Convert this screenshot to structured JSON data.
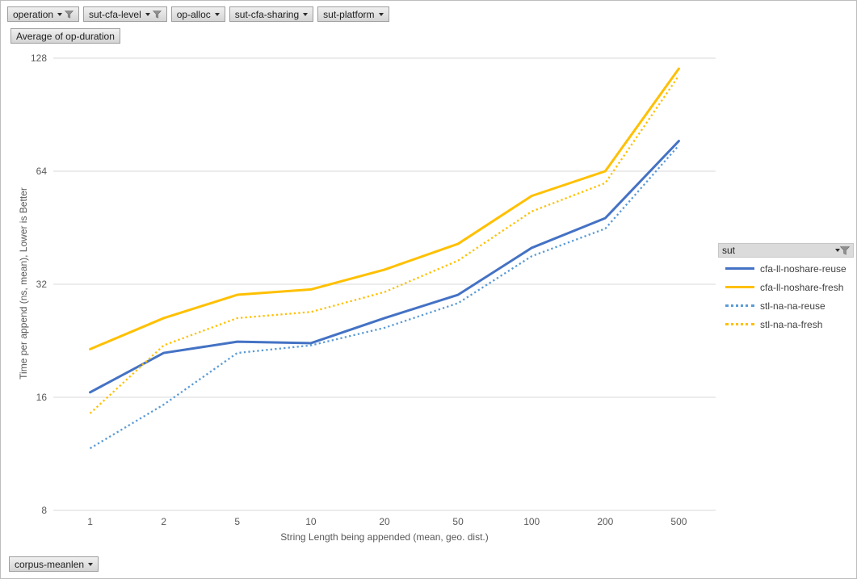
{
  "filters": {
    "top_buttons": [
      {
        "label": "operation",
        "filtered": true
      },
      {
        "label": "sut-cfa-level",
        "filtered": true
      },
      {
        "label": "op-alloc",
        "filtered": false
      },
      {
        "label": "sut-cfa-sharing",
        "filtered": false
      },
      {
        "label": "sut-platform",
        "filtered": false
      }
    ],
    "value_button": "Average of op-duration",
    "bottom_button": "corpus-meanlen"
  },
  "legend": {
    "title": "sut",
    "filtered": true,
    "items": [
      {
        "label": "cfa-ll-noshare-reuse",
        "color": "#4472C4",
        "style": "solid"
      },
      {
        "label": "cfa-ll-noshare-fresh",
        "color": "#FFC000",
        "style": "solid"
      },
      {
        "label": "stl-na-na-reuse",
        "color": "#5B9BD5",
        "style": "dotted"
      },
      {
        "label": "stl-na-na-fresh",
        "color": "#FFC000",
        "style": "dotted"
      }
    ]
  },
  "chart_data": {
    "type": "line",
    "title": "",
    "x_axis_title": "String Length being appended (mean, geo. dist.)",
    "y_axis_title": "Time per append (ns, mean),  Lower is Better",
    "categories": [
      "1",
      "2",
      "5",
      "10",
      "20",
      "50",
      "100",
      "200",
      "500"
    ],
    "y_ticks": [
      8,
      16,
      32,
      64,
      128
    ],
    "y_scale": "log2",
    "ylim": [
      8,
      128
    ],
    "grid": "horizontal",
    "legend_position": "right",
    "gridline_color": "#D9D9D9",
    "tick_color": "#595959",
    "series": [
      {
        "name": "cfa-ll-noshare-reuse",
        "color": "#4472C4",
        "line": "solid",
        "values": [
          16.5,
          21,
          22.5,
          22.3,
          26,
          30,
          40,
          48,
          77
        ]
      },
      {
        "name": "cfa-ll-noshare-fresh",
        "color": "#FFC000",
        "line": "solid",
        "values": [
          21.5,
          26,
          30,
          31,
          35,
          41,
          55,
          64,
          120
        ]
      },
      {
        "name": "stl-na-na-reuse",
        "color": "#5B9BD5",
        "line": "dotted",
        "values": [
          11.7,
          15.3,
          21,
          22,
          24.5,
          28.5,
          38,
          45,
          75
        ]
      },
      {
        "name": "stl-na-na-fresh",
        "color": "#FFC000",
        "line": "dotted",
        "values": [
          14.5,
          22,
          26,
          27,
          30.5,
          37,
          50,
          59.5,
          115
        ]
      }
    ]
  }
}
